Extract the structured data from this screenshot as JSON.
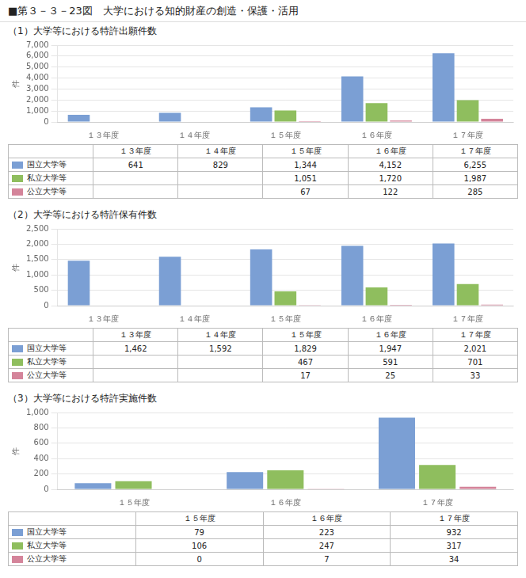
{
  "title": "■第３－３－23図　大学における知的財産の創造・保護・活用",
  "chart_data": [
    {
      "type": "bar",
      "title": "（1）大学等における特許出願件数",
      "ylabel": "件",
      "categories": [
        "１３年度",
        "１４年度",
        "１５年度",
        "１６年度",
        "１７年度"
      ],
      "series": [
        {
          "name": "国立大学等",
          "color": "#7b9fd4",
          "values": [
            641,
            829,
            1344,
            4152,
            6255
          ],
          "value_labels": [
            "641",
            "829",
            "1,344",
            "4,152",
            "6,255"
          ]
        },
        {
          "name": "私立大学等",
          "color": "#8fbe5e",
          "values": [
            0,
            0,
            1051,
            1720,
            1987
          ],
          "value_labels": [
            null,
            null,
            "1,051",
            "1,720",
            "1,987"
          ]
        },
        {
          "name": "公立大学等",
          "color": "#d4849a",
          "values": [
            0,
            0,
            67,
            122,
            285
          ],
          "value_labels": [
            null,
            null,
            "67",
            "122",
            "285"
          ]
        }
      ],
      "ylim": [
        0,
        7000
      ],
      "yticks": [
        0,
        {
          "value": 1000,
          "label": "1,000"
        },
        {
          "value": 2000,
          "label": "2,000"
        },
        {
          "value": 3000,
          "label": "3,000"
        },
        {
          "value": 4000,
          "label": "4,000"
        },
        {
          "value": 5000,
          "label": "5,000"
        },
        {
          "value": 6000,
          "label": "6,000"
        },
        {
          "value": 7000,
          "label": "7,000"
        }
      ],
      "grid": true
    },
    {
      "type": "bar",
      "title": "（2）大学等における特許保有件数",
      "ylabel": "件",
      "categories": [
        "１３年度",
        "１４年度",
        "１５年度",
        "１６年度",
        "１７年度"
      ],
      "series": [
        {
          "name": "国立大学等",
          "color": "#7b9fd4",
          "values": [
            1462,
            1592,
            1829,
            1947,
            2021
          ],
          "value_labels": [
            "1,462",
            "1,592",
            "1,829",
            "1,947",
            "2,021"
          ]
        },
        {
          "name": "私立大学等",
          "color": "#8fbe5e",
          "values": [
            0,
            0,
            467,
            591,
            701
          ],
          "value_labels": [
            null,
            null,
            "467",
            "591",
            "701"
          ]
        },
        {
          "name": "公立大学等",
          "color": "#d4849a",
          "values": [
            0,
            0,
            17,
            25,
            33
          ],
          "value_labels": [
            null,
            null,
            "17",
            "25",
            "33"
          ]
        }
      ],
      "ylim": [
        0,
        2500
      ],
      "yticks": [
        0,
        500,
        {
          "value": 1000,
          "label": "1,000"
        },
        {
          "value": 1500,
          "label": "1,500"
        },
        {
          "value": 2000,
          "label": "2,000"
        },
        {
          "value": 2500,
          "label": "2,500"
        }
      ],
      "grid": true
    },
    {
      "type": "bar",
      "title": "（3）大学等における特許実施件数",
      "ylabel": "件",
      "categories": [
        "１５年度",
        "１６年度",
        "１７年度"
      ],
      "series": [
        {
          "name": "国立大学等",
          "color": "#7b9fd4",
          "values": [
            79,
            223,
            932
          ],
          "value_labels": [
            "79",
            "223",
            "932"
          ]
        },
        {
          "name": "私立大学等",
          "color": "#8fbe5e",
          "values": [
            106,
            247,
            317
          ],
          "value_labels": [
            "106",
            "247",
            "317"
          ]
        },
        {
          "name": "公立大学等",
          "color": "#d4849a",
          "values": [
            0,
            7,
            34
          ],
          "value_labels": [
            "0",
            "7",
            "34"
          ]
        }
      ],
      "ylim": [
        0,
        1000
      ],
      "yticks": [
        0,
        200,
        400,
        600,
        800,
        {
          "value": 1000,
          "label": "1,000"
        }
      ],
      "grid": true
    }
  ]
}
